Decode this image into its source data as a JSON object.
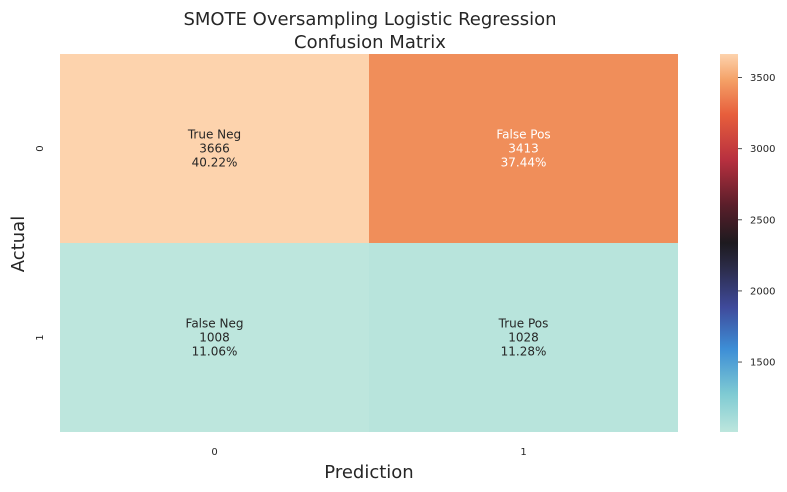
{
  "chart_data": {
    "type": "heatmap",
    "title": "SMOTE Oversampling Logistic Regression\nConfusion Matrix",
    "xlabel": "Prediction",
    "ylabel": "Actual",
    "x_categories": [
      "0",
      "1"
    ],
    "y_categories": [
      "0",
      "1"
    ],
    "cells": [
      {
        "row": 0,
        "col": 0,
        "value": 3666,
        "label": "True Neg",
        "count_text": "3666",
        "percent_text": "40.22%"
      },
      {
        "row": 0,
        "col": 1,
        "value": 3413,
        "label": "False Pos",
        "count_text": "3413",
        "percent_text": "37.44%"
      },
      {
        "row": 1,
        "col": 0,
        "value": 1008,
        "label": "False Neg",
        "count_text": "1008",
        "percent_text": "11.06%"
      },
      {
        "row": 1,
        "col": 1,
        "value": 1028,
        "label": "True Pos",
        "count_text": "1028",
        "percent_text": "11.28%"
      }
    ],
    "colormap": "icefire",
    "vmin": 1008,
    "vmax": 3666,
    "colorbar_ticks": [
      1500,
      2000,
      2500,
      3000,
      3500
    ],
    "grid": false
  }
}
